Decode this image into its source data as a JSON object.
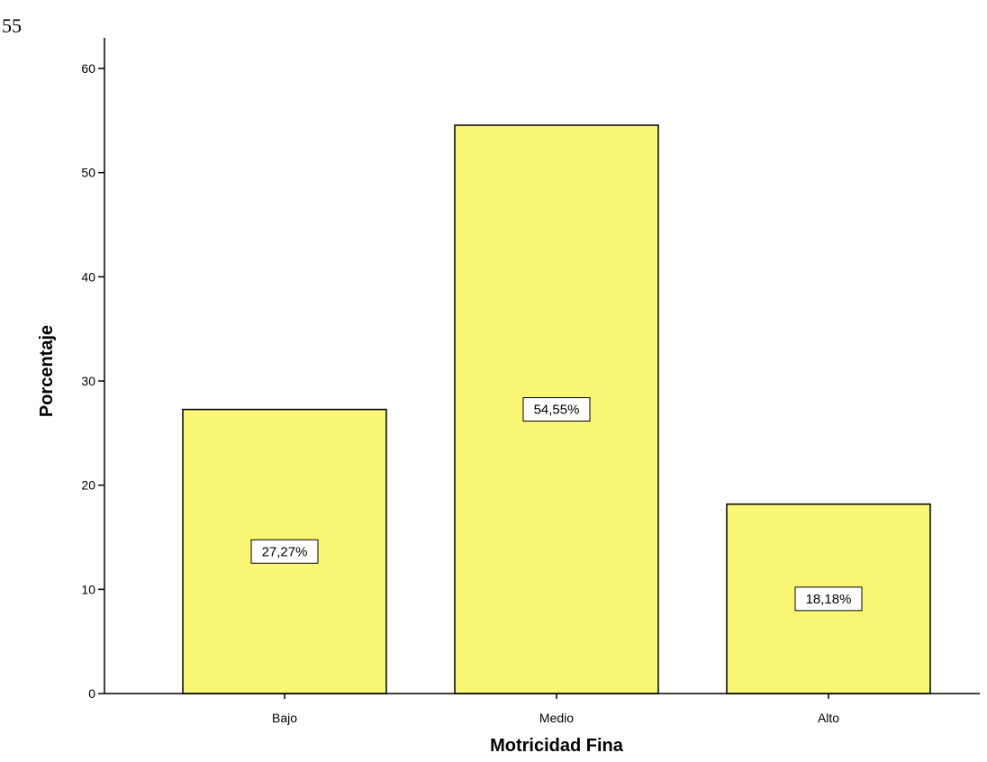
{
  "page": {
    "number": "55"
  },
  "chart_data": {
    "type": "bar",
    "categories": [
      "Bajo",
      "Medio",
      "Alto"
    ],
    "values": [
      27.27,
      54.55,
      18.18
    ],
    "data_labels": [
      "27,27%",
      "54,55%",
      "18,18%"
    ],
    "xlabel": "Motricidad Fina",
    "ylabel": "Porcentaje",
    "ylim": [
      0,
      60
    ],
    "yticks": [
      0,
      10,
      20,
      30,
      40,
      50,
      60
    ],
    "grid": false,
    "legend": "none",
    "bar_color": "#f9f774",
    "bar_stroke": "#000000"
  }
}
